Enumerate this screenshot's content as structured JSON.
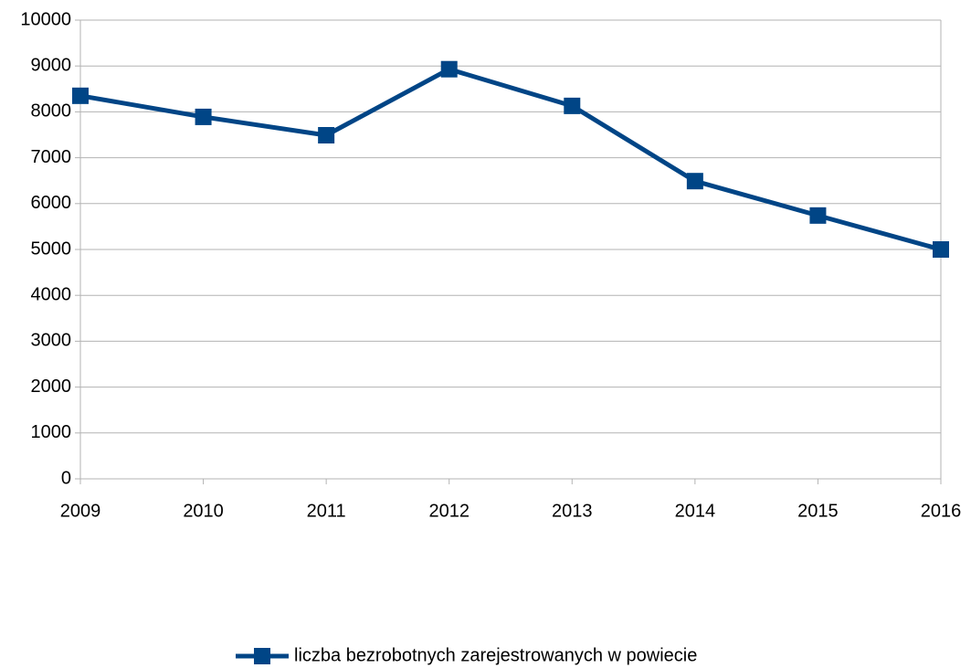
{
  "chart_data": {
    "type": "line",
    "categories": [
      "2009",
      "2010",
      "2011",
      "2012",
      "2013",
      "2014",
      "2015",
      "2016"
    ],
    "series": [
      {
        "name": "liczba bezrobotnych zarejestrowanych w powiecie",
        "color": "#004586",
        "values": [
          8350,
          7890,
          7490,
          8930,
          8130,
          6490,
          5740,
          5000
        ]
      }
    ],
    "ylim": [
      0,
      10000
    ],
    "yticks": [
      0,
      1000,
      2000,
      3000,
      4000,
      5000,
      6000,
      7000,
      8000,
      9000,
      10000
    ],
    "grid": true,
    "legend": "bottom"
  }
}
